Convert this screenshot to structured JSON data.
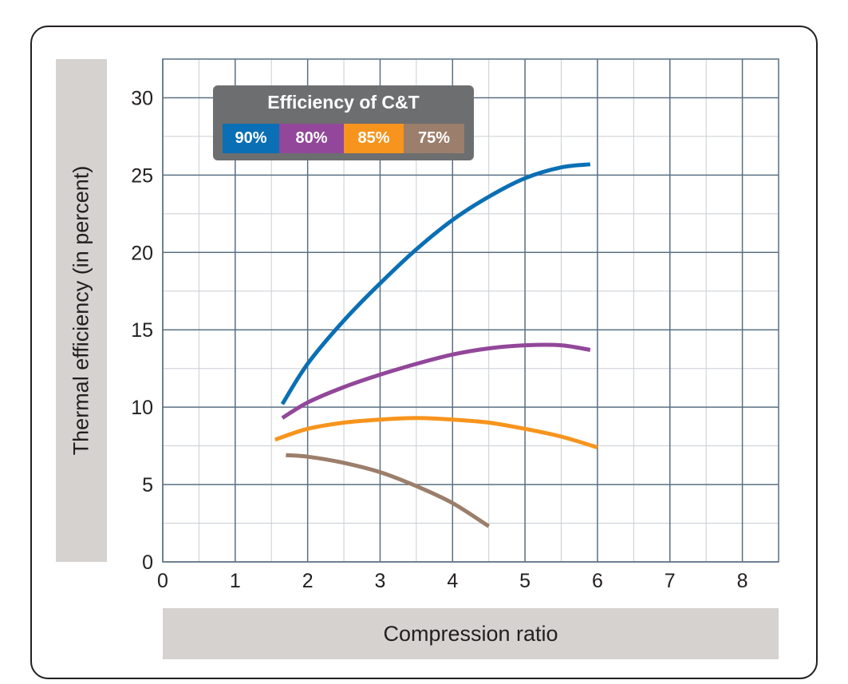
{
  "chart_data": {
    "type": "line",
    "xlabel": "Compression ratio",
    "ylabel": "Thermal efficiency (in percent)",
    "xlim": [
      0,
      8.5
    ],
    "ylim": [
      0,
      32.5
    ],
    "x_ticks": [
      0,
      1,
      2,
      3,
      4,
      5,
      6,
      7,
      8
    ],
    "y_ticks": [
      0,
      5,
      10,
      15,
      20,
      25,
      30
    ],
    "grid": true,
    "legend": {
      "title": "Efficiency of C&T",
      "placement": "top-left",
      "entries": [
        "90%",
        "80%",
        "85%",
        "75%"
      ]
    },
    "series": [
      {
        "name": "90%",
        "color": "#0a6fb4",
        "x": [
          1.65,
          2.0,
          2.5,
          3.0,
          3.5,
          4.0,
          4.5,
          5.0,
          5.5,
          5.9
        ],
        "y": [
          10.2,
          12.8,
          15.6,
          18.0,
          20.2,
          22.1,
          23.6,
          24.8,
          25.5,
          25.7
        ]
      },
      {
        "name": "80%",
        "color": "#92479a",
        "x": [
          1.65,
          2.0,
          2.5,
          3.0,
          3.5,
          4.0,
          4.5,
          5.0,
          5.5,
          5.9
        ],
        "y": [
          9.3,
          10.3,
          11.3,
          12.1,
          12.8,
          13.4,
          13.8,
          14.0,
          14.0,
          13.7
        ]
      },
      {
        "name": "85%",
        "color": "#f7941d",
        "x": [
          1.55,
          2.0,
          2.5,
          3.0,
          3.5,
          4.0,
          4.5,
          5.0,
          5.5,
          6.0
        ],
        "y": [
          7.9,
          8.6,
          9.0,
          9.2,
          9.3,
          9.2,
          9.0,
          8.6,
          8.1,
          7.4
        ]
      },
      {
        "name": "75%",
        "color": "#9b7e6b",
        "x": [
          1.7,
          2.0,
          2.5,
          3.0,
          3.5,
          4.0,
          4.5
        ],
        "y": [
          6.9,
          6.8,
          6.4,
          5.8,
          4.9,
          3.8,
          2.3
        ]
      }
    ]
  }
}
